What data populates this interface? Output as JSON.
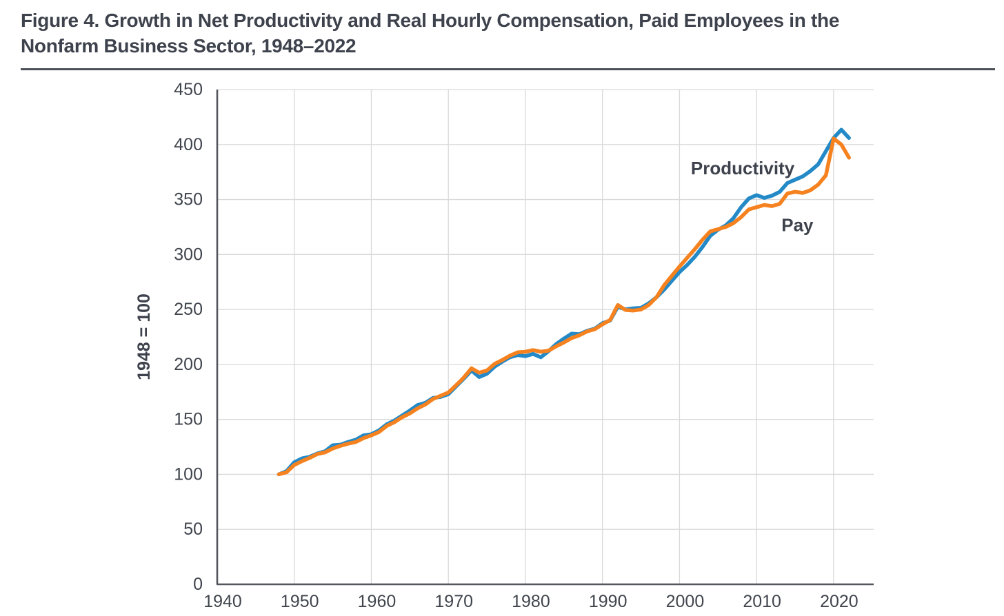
{
  "header": {
    "title_line1": "Figure 4. Growth in Net Productivity and Real Hourly Compensation, Paid Employees in the",
    "title_line2": "Nonfarm Business Sector, 1948–2022"
  },
  "colors": {
    "productivity": "#2389c7",
    "pay": "#f5821f",
    "text": "#3d424c",
    "tick_text": "#40454d",
    "grid": "#d9d9d9",
    "axis": "#53565c"
  },
  "chart_data": {
    "type": "line",
    "title": "Figure 4. Growth in Net Productivity and Real Hourly Compensation, Paid Employees in the Nonfarm Business Sector, 1948–2022",
    "xlabel": "",
    "ylabel": "1948 = 100",
    "xlim": [
      1940,
      2025.2
    ],
    "ylim": [
      0,
      450
    ],
    "x_ticks": [
      1940,
      1950,
      1960,
      1970,
      1980,
      1990,
      2000,
      2010,
      2020
    ],
    "y_ticks": [
      0,
      50,
      100,
      150,
      200,
      250,
      300,
      350,
      400,
      450
    ],
    "grid": true,
    "legend_position": "inline-annotations",
    "x": [
      1948,
      1949,
      1950,
      1951,
      1952,
      1953,
      1954,
      1955,
      1956,
      1957,
      1958,
      1959,
      1960,
      1961,
      1962,
      1963,
      1964,
      1965,
      1966,
      1967,
      1968,
      1969,
      1970,
      1971,
      1972,
      1973,
      1974,
      1975,
      1976,
      1977,
      1978,
      1979,
      1980,
      1981,
      1982,
      1983,
      1984,
      1985,
      1986,
      1987,
      1988,
      1989,
      1990,
      1991,
      1992,
      1993,
      1994,
      1995,
      1996,
      1997,
      1998,
      1999,
      2000,
      2001,
      2002,
      2003,
      2004,
      2005,
      2006,
      2007,
      2008,
      2009,
      2010,
      2011,
      2012,
      2013,
      2014,
      2015,
      2016,
      2017,
      2018,
      2019,
      2020,
      2021,
      2022
    ],
    "series": [
      {
        "name": "Productivity",
        "color": "#2389c7",
        "values": [
          100,
          103,
          111,
          114.5,
          116,
          119,
          121,
          126.5,
          127,
          129.5,
          131.5,
          135.5,
          136.5,
          140,
          145.5,
          149,
          153.5,
          158,
          163,
          165,
          169.5,
          170.5,
          173,
          180,
          187,
          194.5,
          188.5,
          191.5,
          198,
          202.5,
          206.5,
          208.5,
          207.5,
          209.5,
          206.5,
          212,
          218.5,
          223.5,
          228,
          227.5,
          230.5,
          232.5,
          237.5,
          240,
          252.5,
          250,
          251,
          251.5,
          255.5,
          261,
          268,
          276,
          284,
          290.5,
          298,
          307,
          317,
          322.5,
          326.5,
          333,
          343,
          351,
          354,
          351.5,
          353.5,
          357,
          365,
          368,
          371,
          376,
          382,
          394,
          406,
          413.5,
          406
        ]
      },
      {
        "name": "Pay",
        "color": "#f5821f",
        "values": [
          100,
          102,
          108.5,
          112,
          115,
          118.5,
          120,
          123.5,
          126,
          128,
          129.5,
          133,
          135.5,
          138.5,
          144,
          147.5,
          152,
          155.5,
          160,
          163.5,
          168.5,
          171.5,
          174.5,
          181,
          188,
          196.5,
          192.5,
          194.5,
          200.5,
          204,
          208,
          211,
          211.5,
          213,
          211.5,
          212.5,
          216.5,
          220,
          224,
          226.5,
          230,
          232,
          236.5,
          240.5,
          254,
          249.5,
          249,
          250,
          254,
          261,
          272,
          280.5,
          289,
          297,
          305,
          313.5,
          321,
          323,
          325,
          328.5,
          334,
          341,
          343,
          345,
          344,
          346,
          355.5,
          357,
          356,
          358.5,
          363.5,
          372,
          405.5,
          400,
          388
        ]
      }
    ],
    "annotations": [
      {
        "text": "Productivity",
        "x": 2008.2,
        "y": 378.5
      },
      {
        "text": "Pay",
        "x": 2015.3,
        "y": 327
      }
    ]
  }
}
